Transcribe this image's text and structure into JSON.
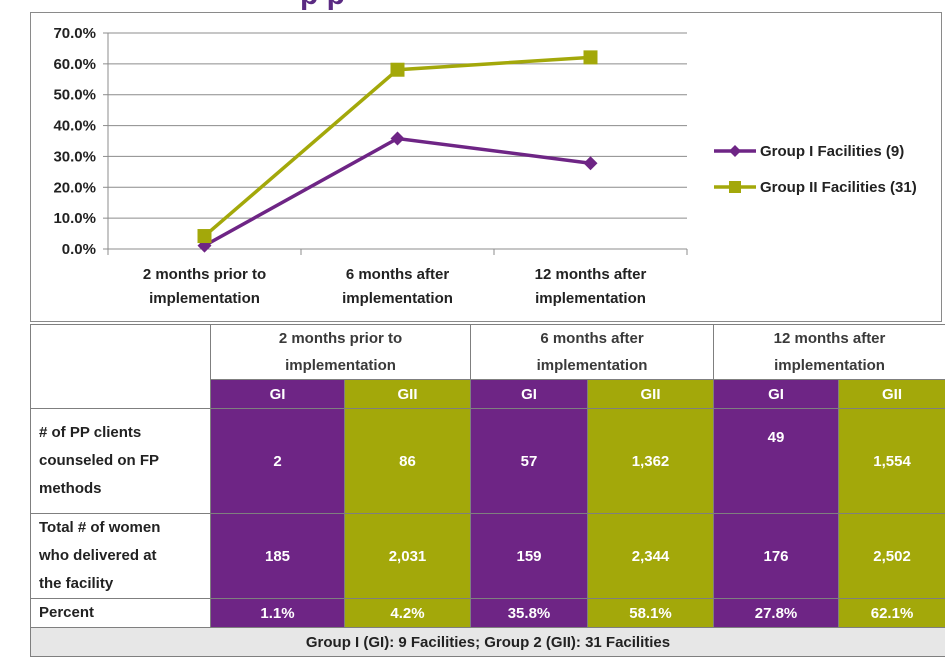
{
  "page": {
    "title_partial": "p   p"
  },
  "chart_data": {
    "type": "line",
    "categories": [
      [
        "2 months prior to",
        "implementation"
      ],
      [
        "6 months after",
        "implementation"
      ],
      [
        "12 months after",
        "implementation"
      ]
    ],
    "y_ticks": [
      "70.0%",
      "60.0%",
      "50.0%",
      "40.0%",
      "30.0%",
      "20.0%",
      "10.0%",
      "0.0%"
    ],
    "ylim": [
      0,
      70
    ],
    "grid": true,
    "legend_placement": "right",
    "series": [
      {
        "name": "Group I Facilities (9)",
        "values": [
          1.1,
          35.8,
          27.8
        ],
        "color": "#6e2585",
        "marker": "diamond"
      },
      {
        "name": "Group II Facilities (31)",
        "values": [
          4.2,
          58.1,
          62.1
        ],
        "color": "#a3a80a",
        "marker": "square"
      }
    ]
  },
  "table": {
    "periods": [
      [
        "2 months prior to",
        "implementation"
      ],
      [
        "6 months after",
        "implementation"
      ],
      [
        "12 months after",
        "implementation"
      ]
    ],
    "group_labels": {
      "gi": "GI",
      "gii": "GII"
    },
    "rows": [
      {
        "label": [
          "# of PP clients",
          "counseled on FP",
          "methods"
        ],
        "values": [
          "2",
          "86",
          "57",
          "1,362",
          "49",
          "1,554"
        ]
      },
      {
        "label": [
          "Total # of women",
          "who delivered at",
          "the facility"
        ],
        "values": [
          "185",
          "2,031",
          "159",
          "2,344",
          "176",
          "2,502"
        ]
      },
      {
        "label": [
          "Percent"
        ],
        "values": [
          "1.1%",
          "4.2%",
          "35.8%",
          "58.1%",
          "27.8%",
          "62.1%"
        ]
      }
    ],
    "footnote": "Group I (GI): 9 Facilities; Group 2 (GII): 31 Facilities",
    "colors": {
      "gi": "#6e2585",
      "gii": "#a3a80a"
    }
  }
}
